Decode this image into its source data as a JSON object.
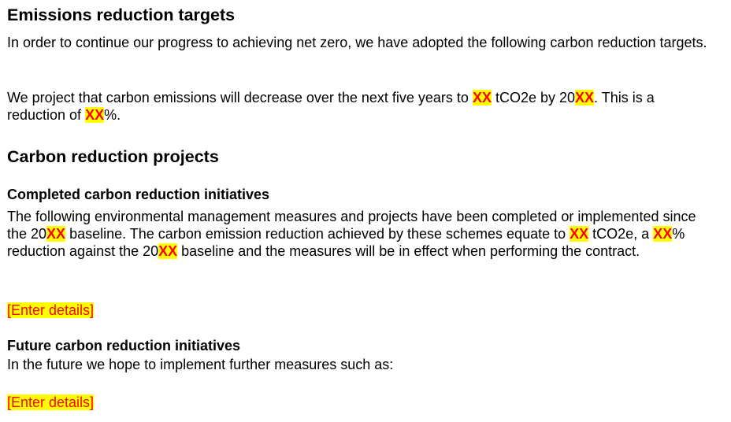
{
  "section1": {
    "heading": "Emissions reduction targets",
    "para1": "In order to continue our progress to achieving net zero, we have adopted the following carbon reduction targets.",
    "para2": {
      "t1": "We project that carbon emissions will decrease over the next five years to ",
      "p1": "XX",
      "t2": " tCO2e by 20",
      "p2": "XX",
      "t3": ". This is a reduction of ",
      "p3": "XX",
      "t4": "%."
    }
  },
  "section2": {
    "heading": "Carbon reduction projects",
    "completed": {
      "heading": "Completed carbon reduction initiatives",
      "t1": "The following environmental management measures and projects have been completed or implemented since the 20",
      "p1": "XX",
      "t2": " baseline. The carbon emission reduction achieved by these schemes equate to ",
      "p2": "XX",
      "t3": " tCO2e, a ",
      "p3": "XX",
      "t4": "% reduction against the 20",
      "p4": "XX",
      "t5": " baseline and the measures will be in effect when performing the contract.",
      "placeholder": "[Enter details]"
    },
    "future": {
      "heading": "Future carbon reduction initiatives",
      "text": "In the future we hope to implement further measures such as:",
      "placeholder": "[Enter details]"
    }
  },
  "colors": {
    "highlight_bg": "#ffff00",
    "highlight_text": "#ff0000"
  }
}
